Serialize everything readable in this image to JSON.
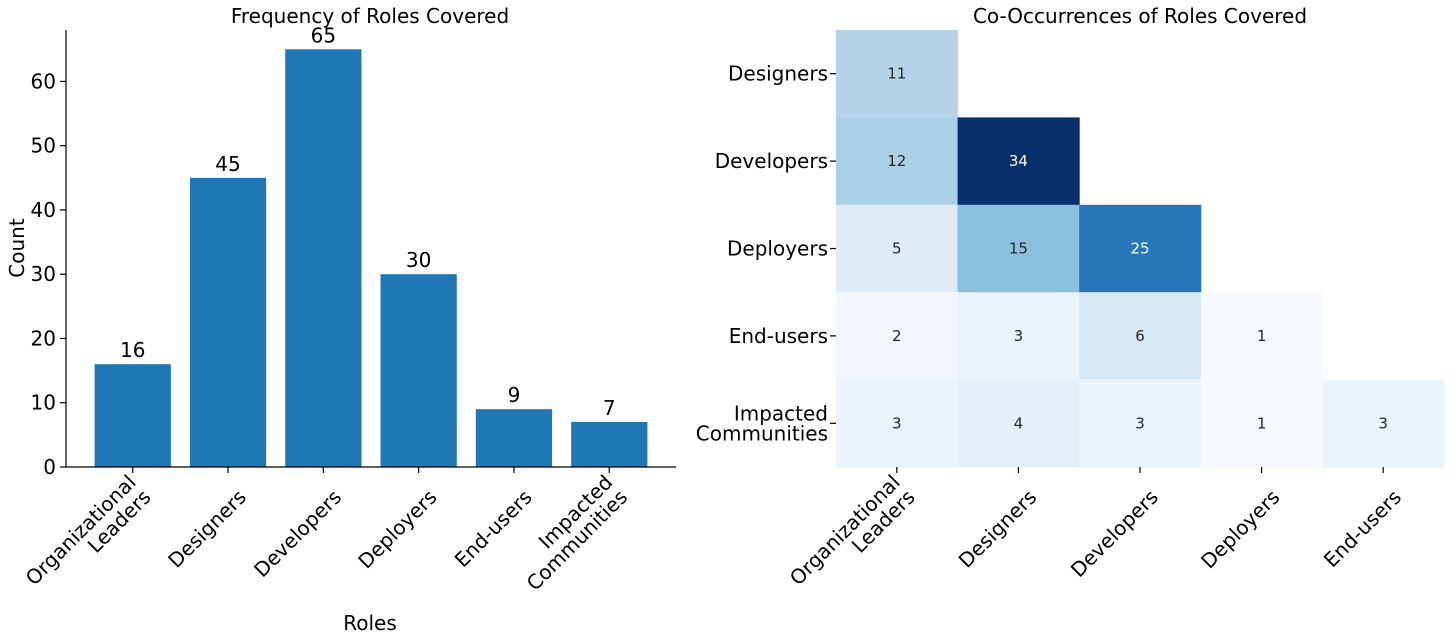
{
  "chart_data": [
    {
      "type": "bar",
      "title": "Frequency of Roles Covered",
      "xlabel": "Roles",
      "ylabel": "Count",
      "categories": [
        "Organizational Leaders",
        "Designers",
        "Developers",
        "Deployers",
        "End-users",
        "Impacted Communities"
      ],
      "category_lines": [
        [
          "Organizational",
          "Leaders"
        ],
        [
          "Designers"
        ],
        [
          "Developers"
        ],
        [
          "Deployers"
        ],
        [
          "End-users"
        ],
        [
          "Impacted",
          "Communities"
        ]
      ],
      "values": [
        16,
        45,
        65,
        30,
        9,
        7
      ],
      "ylim": [
        0,
        68
      ],
      "yticks": [
        0,
        10,
        20,
        30,
        40,
        50,
        60
      ],
      "bar_color": "#1f77b4",
      "grid": false
    },
    {
      "type": "heatmap",
      "title": "Co-Occurrences of Roles Covered",
      "colormap": "Blues",
      "colors": {
        "low": "#f7fbff",
        "mid": "#6baed6",
        "high": "#08306b"
      },
      "row_labels": [
        "Designers",
        "Developers",
        "Deployers",
        "End-users",
        "Impacted Communities"
      ],
      "row_label_lines": [
        [
          "Designers"
        ],
        [
          "Developers"
        ],
        [
          "Deployers"
        ],
        [
          "End-users"
        ],
        [
          "Impacted",
          "Communities"
        ]
      ],
      "col_labels": [
        "Organizational Leaders",
        "Designers",
        "Developers",
        "Deployers",
        "End-users"
      ],
      "col_label_lines": [
        [
          "Organizational",
          "Leaders"
        ],
        [
          "Designers"
        ],
        [
          "Developers"
        ],
        [
          "Deployers"
        ],
        [
          "End-users"
        ]
      ],
      "values": [
        [
          11,
          null,
          null,
          null,
          null
        ],
        [
          12,
          34,
          null,
          null,
          null
        ],
        [
          5,
          15,
          25,
          null,
          null
        ],
        [
          2,
          3,
          6,
          1,
          null
        ],
        [
          3,
          4,
          3,
          1,
          3
        ]
      ],
      "vmin": 1,
      "vmax": 34
    }
  ]
}
